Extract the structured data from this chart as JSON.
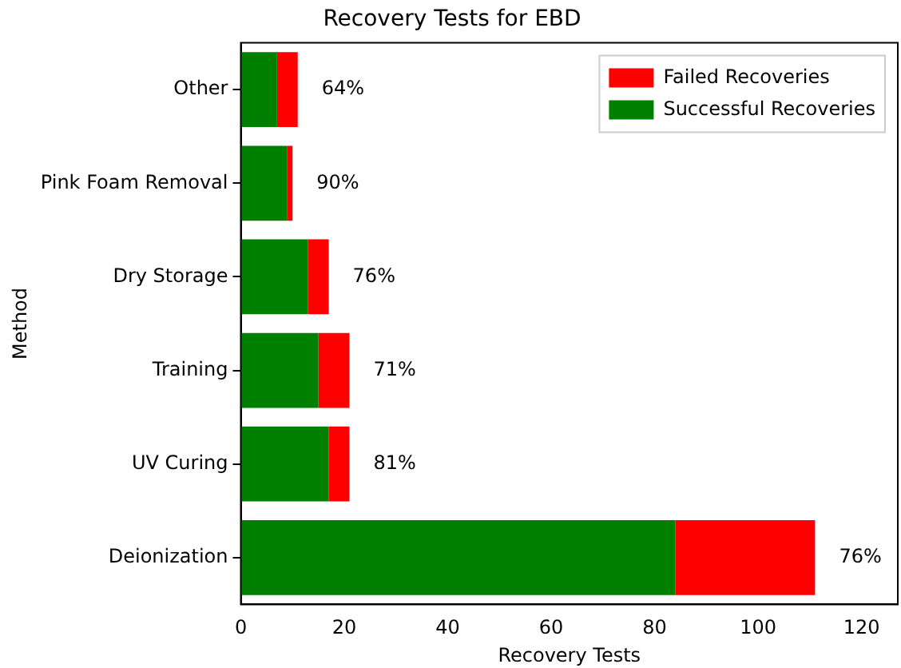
{
  "chart_data": {
    "type": "bar",
    "orientation": "horizontal",
    "stacked": true,
    "title": "Recovery Tests for EBD",
    "xlabel": "Recovery Tests",
    "ylabel": "Method",
    "categories": [
      "Other",
      "Pink Foam Removal",
      "Dry Storage",
      "Training",
      "UV Curing",
      "Deionization"
    ],
    "series": [
      {
        "name": "Successful Recoveries",
        "color": "#008000",
        "values": [
          7,
          9,
          13,
          15,
          17,
          84
        ]
      },
      {
        "name": "Failed Recoveries",
        "color": "#ff0000",
        "values": [
          4,
          1,
          4,
          6,
          4,
          27
        ]
      }
    ],
    "xlim": [
      0,
      127
    ],
    "xticks": [
      0,
      20,
      40,
      60,
      80,
      100,
      120
    ],
    "grid": false,
    "legend": "top right",
    "annotations": [
      {
        "text": "64%",
        "x": 11,
        "y": "Other"
      },
      {
        "text": "90%",
        "x": 10,
        "y": "Pink Foam Removal"
      },
      {
        "text": "76%",
        "x": 17,
        "y": "Dry Storage"
      },
      {
        "text": "71%",
        "x": 21,
        "y": "Training"
      },
      {
        "text": "81%",
        "x": 21,
        "y": "UV Curing"
      },
      {
        "text": "76%",
        "x": 111,
        "y": "Deionization"
      }
    ]
  }
}
